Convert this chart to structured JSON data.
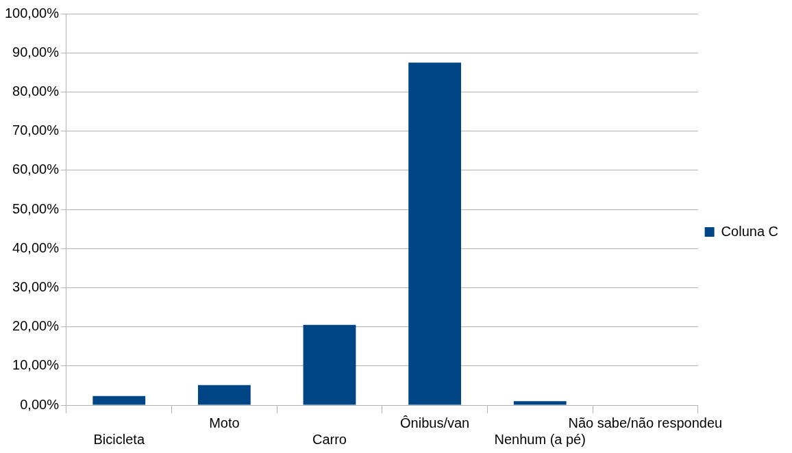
{
  "chart_data": {
    "type": "bar",
    "categories": [
      "Bicicleta",
      "Moto",
      "Carro",
      "Ônibus/van",
      "Nenhum (a pé)",
      "Não sabe/não respondeu"
    ],
    "series": [
      {
        "name": "Coluna C",
        "color": "#004586",
        "values": [
          2.3,
          5.1,
          20.5,
          87.5,
          1.0,
          0
        ]
      }
    ],
    "ylim": [
      0,
      100
    ],
    "yticks": [
      {
        "value": 0,
        "label": "0,00%"
      },
      {
        "value": 10,
        "label": "10,00%"
      },
      {
        "value": 20,
        "label": "20,00%"
      },
      {
        "value": 30,
        "label": "30,00%"
      },
      {
        "value": 40,
        "label": "40,00%"
      },
      {
        "value": 50,
        "label": "50,00%"
      },
      {
        "value": 60,
        "label": "60,00%"
      },
      {
        "value": 70,
        "label": "70,00%"
      },
      {
        "value": 80,
        "label": "80,00%"
      },
      {
        "value": 90,
        "label": "90,00%"
      },
      {
        "value": 100,
        "label": "100,00%"
      }
    ],
    "grid": "y",
    "legend": "right"
  }
}
